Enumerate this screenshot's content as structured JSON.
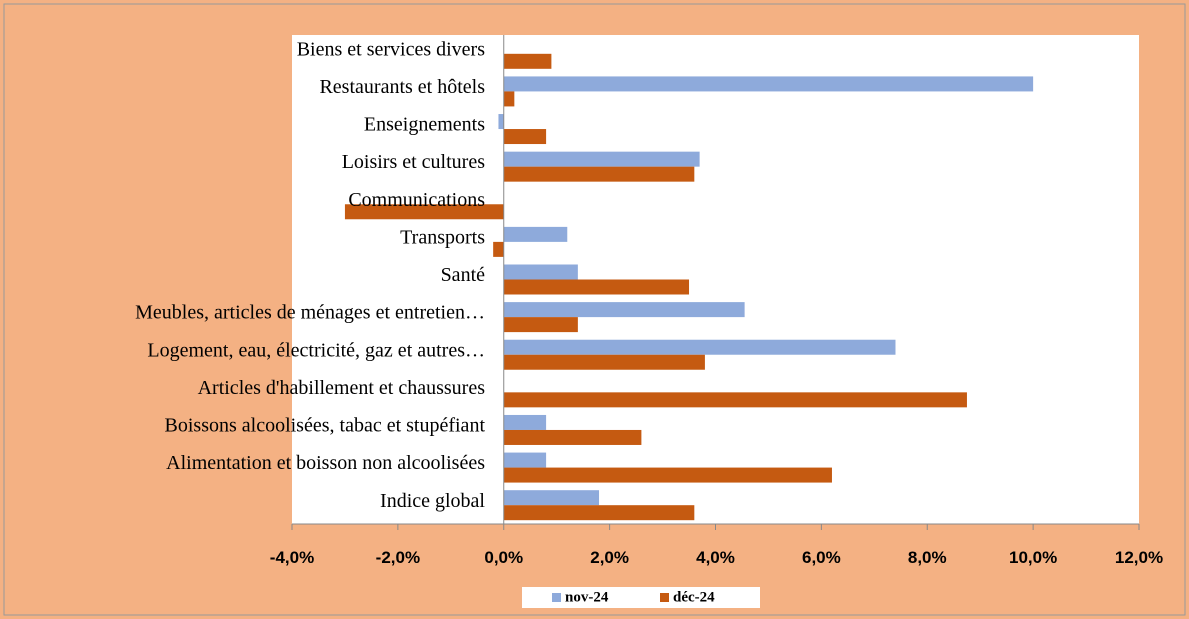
{
  "chart_data": {
    "type": "hbar",
    "categories": [
      "Biens et services divers",
      "Restaurants et hôtels",
      "Enseignements",
      "Loisirs et cultures",
      "Communications",
      "Transports",
      "Santé",
      "Meubles, articles de ménages et entretien…",
      "Logement, eau, électricité, gaz et autres…",
      "Articles d'habillement et chaussures",
      "Boissons alcoolisées, tabac et stupéfiant",
      "Alimentation et boisson non alcoolisées",
      "Indice global"
    ],
    "series": [
      {
        "name": "nov-24",
        "color": "#8eaadb",
        "values": [
          0,
          10.0,
          -0.1,
          3.7,
          0,
          1.2,
          1.4,
          4.55,
          7.4,
          0,
          0.8,
          0.8,
          1.8
        ]
      },
      {
        "name": "déc-24",
        "color": "#c55a11",
        "values": [
          0.9,
          0.2,
          0.8,
          3.6,
          -3.0,
          -0.2,
          3.5,
          1.4,
          3.8,
          8.75,
          2.6,
          6.2,
          3.6
        ]
      }
    ],
    "xlim": [
      -4,
      12
    ],
    "xticks": [
      {
        "value": -4,
        "label": "-4,0%"
      },
      {
        "value": -2,
        "label": "-2,0%"
      },
      {
        "value": 0,
        "label": "0,0%"
      },
      {
        "value": 2,
        "label": "2,0%"
      },
      {
        "value": 4,
        "label": "4,0%"
      },
      {
        "value": 6,
        "label": "6,0%"
      },
      {
        "value": 8,
        "label": "8,0%"
      },
      {
        "value": 10,
        "label": "10,0%"
      },
      {
        "value": 12,
        "label": "12,0%"
      }
    ],
    "legend": "bottom"
  }
}
